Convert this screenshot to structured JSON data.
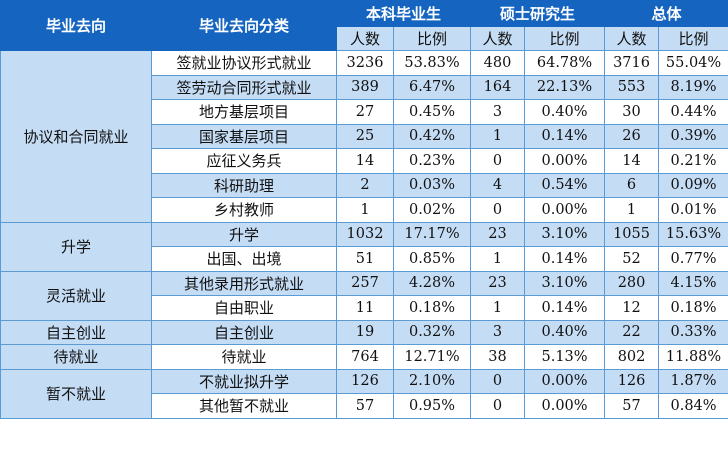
{
  "table": {
    "headers": {
      "direction": "毕业去向",
      "category": "毕业去向分类",
      "groups": [
        {
          "label": "本科毕业生",
          "count_label": "人数",
          "ratio_label": "比例"
        },
        {
          "label": "硕士研究生",
          "count_label": "人数",
          "ratio_label": "比例"
        },
        {
          "label": "总体",
          "count_label": "人数",
          "ratio_label": "比例"
        }
      ]
    },
    "groups": [
      {
        "name": "协议和合同就业",
        "rowspan": 7
      },
      {
        "name": "升学",
        "rowspan": 2
      },
      {
        "name": "灵活就业",
        "rowspan": 2
      },
      {
        "name": "自主创业",
        "rowspan": 1
      },
      {
        "name": "待就业",
        "rowspan": 1
      },
      {
        "name": "暂不就业",
        "rowspan": 2
      }
    ],
    "rows": [
      {
        "category": "签就业协议形式就业",
        "ug_count": "3236",
        "ug_ratio": "53.83%",
        "ms_count": "480",
        "ms_ratio": "64.78%",
        "all_count": "3716",
        "all_ratio": "55.04%"
      },
      {
        "category": "签劳动合同形式就业",
        "ug_count": "389",
        "ug_ratio": "6.47%",
        "ms_count": "164",
        "ms_ratio": "22.13%",
        "all_count": "553",
        "all_ratio": "8.19%"
      },
      {
        "category": "地方基层项目",
        "ug_count": "27",
        "ug_ratio": "0.45%",
        "ms_count": "3",
        "ms_ratio": "0.40%",
        "all_count": "30",
        "all_ratio": "0.44%"
      },
      {
        "category": "国家基层项目",
        "ug_count": "25",
        "ug_ratio": "0.42%",
        "ms_count": "1",
        "ms_ratio": "0.14%",
        "all_count": "26",
        "all_ratio": "0.39%"
      },
      {
        "category": "应征义务兵",
        "ug_count": "14",
        "ug_ratio": "0.23%",
        "ms_count": "0",
        "ms_ratio": "0.00%",
        "all_count": "14",
        "all_ratio": "0.21%"
      },
      {
        "category": "科研助理",
        "ug_count": "2",
        "ug_ratio": "0.03%",
        "ms_count": "4",
        "ms_ratio": "0.54%",
        "all_count": "6",
        "all_ratio": "0.09%"
      },
      {
        "category": "乡村教师",
        "ug_count": "1",
        "ug_ratio": "0.02%",
        "ms_count": "0",
        "ms_ratio": "0.00%",
        "all_count": "1",
        "all_ratio": "0.01%"
      },
      {
        "category": "升学",
        "ug_count": "1032",
        "ug_ratio": "17.17%",
        "ms_count": "23",
        "ms_ratio": "3.10%",
        "all_count": "1055",
        "all_ratio": "15.63%"
      },
      {
        "category": "出国、出境",
        "ug_count": "51",
        "ug_ratio": "0.85%",
        "ms_count": "1",
        "ms_ratio": "0.14%",
        "all_count": "52",
        "all_ratio": "0.77%"
      },
      {
        "category": "其他录用形式就业",
        "ug_count": "257",
        "ug_ratio": "4.28%",
        "ms_count": "23",
        "ms_ratio": "3.10%",
        "all_count": "280",
        "all_ratio": "4.15%"
      },
      {
        "category": "自由职业",
        "ug_count": "11",
        "ug_ratio": "0.18%",
        "ms_count": "1",
        "ms_ratio": "0.14%",
        "all_count": "12",
        "all_ratio": "0.18%"
      },
      {
        "category": "自主创业",
        "ug_count": "19",
        "ug_ratio": "0.32%",
        "ms_count": "3",
        "ms_ratio": "0.40%",
        "all_count": "22",
        "all_ratio": "0.33%"
      },
      {
        "category": "待就业",
        "ug_count": "764",
        "ug_ratio": "12.71%",
        "ms_count": "38",
        "ms_ratio": "5.13%",
        "all_count": "802",
        "all_ratio": "11.88%"
      },
      {
        "category": "不就业拟升学",
        "ug_count": "126",
        "ug_ratio": "2.10%",
        "ms_count": "0",
        "ms_ratio": "0.00%",
        "all_count": "126",
        "all_ratio": "1.87%"
      },
      {
        "category": "其他暂不就业",
        "ug_count": "57",
        "ug_ratio": "0.95%",
        "ms_count": "0",
        "ms_ratio": "0.00%",
        "all_count": "57",
        "all_ratio": "0.84%"
      }
    ]
  },
  "colors": {
    "header_bg": "#1565c0",
    "header_text": "#ffffff",
    "subheader_bg": "#c5dcf5",
    "stripe_bg": "#c5dcf5",
    "border": "#5b9bd5"
  }
}
